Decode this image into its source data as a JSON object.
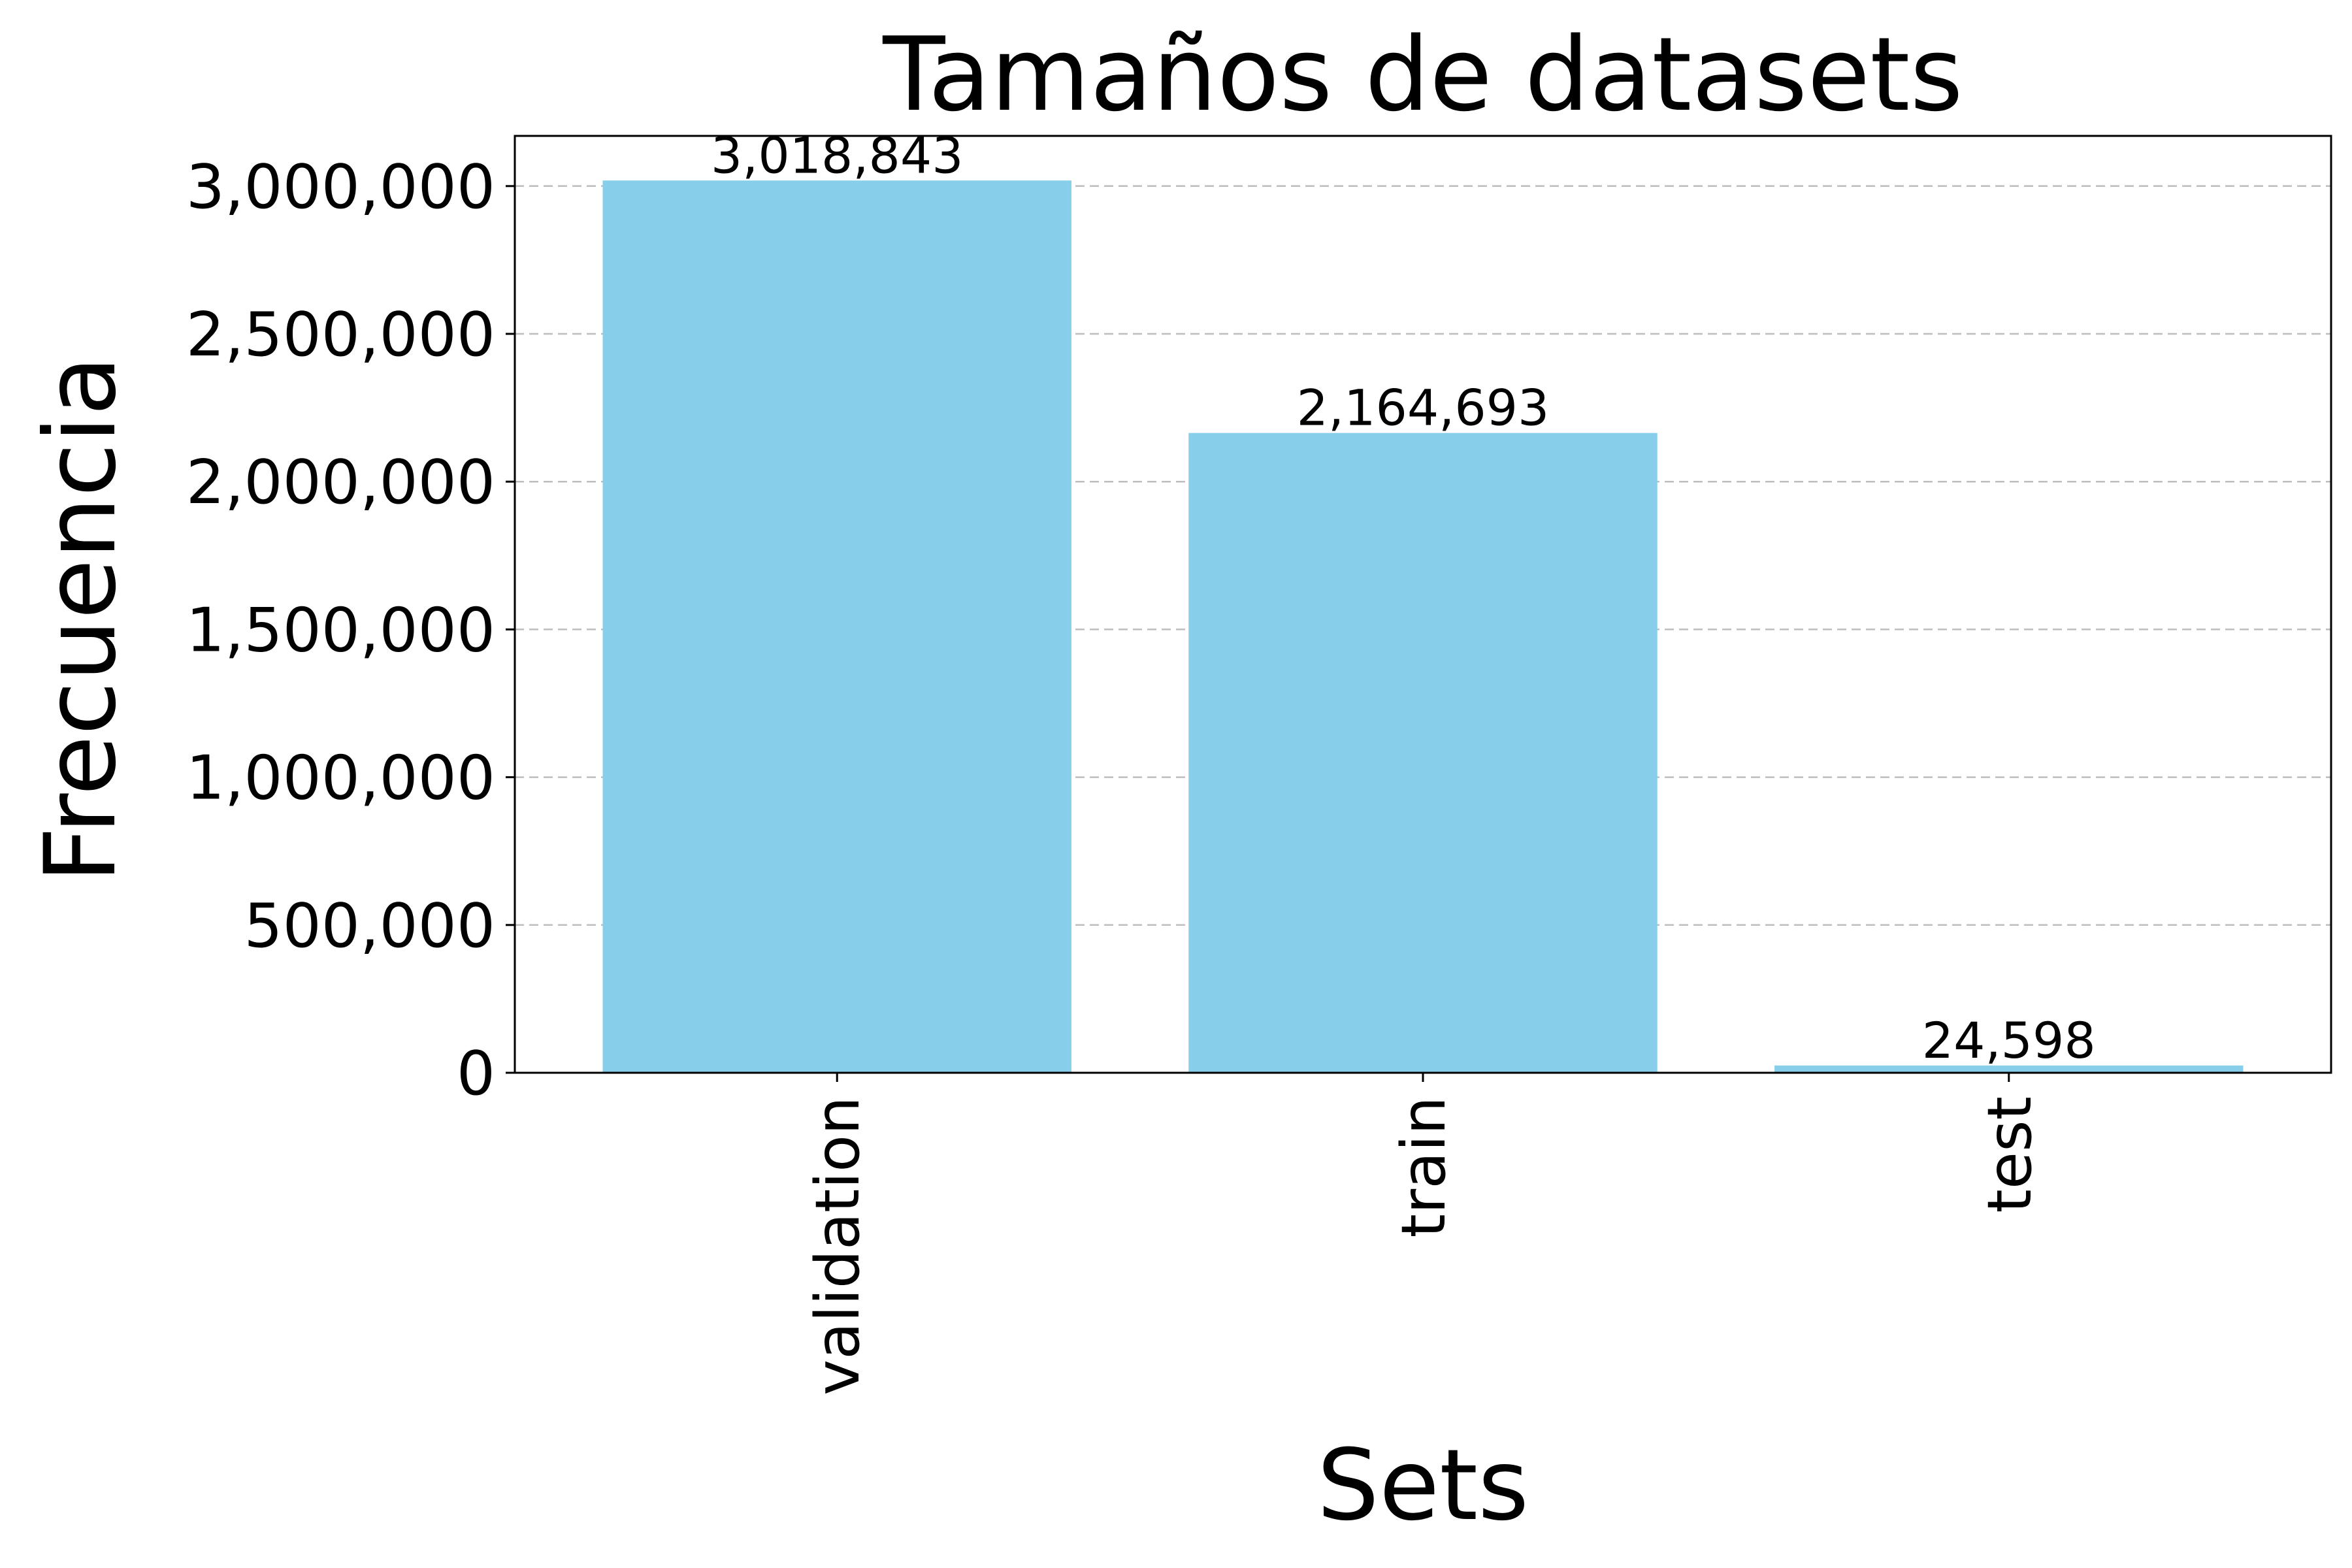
{
  "chart_data": {
    "type": "bar",
    "title": "Tamaños de datasets",
    "xlabel": "Sets",
    "ylabel": "Frecuencia",
    "categories": [
      "validation",
      "train",
      "test"
    ],
    "values": [
      3018843,
      2164693,
      24598
    ],
    "value_labels": [
      "3,018,843",
      "2,164,693",
      "24,598"
    ],
    "yticks": [
      0,
      500000,
      1000000,
      1500000,
      2000000,
      2500000,
      3000000
    ],
    "ytick_labels": [
      "0",
      "500,000",
      "1,000,000",
      "1,500,000",
      "2,000,000",
      "2,500,000",
      "3,000,000"
    ],
    "ylim": [
      0,
      3169785
    ],
    "bar_color": "#87CEEB",
    "grid": "y, dashed",
    "xtick_rotation": "vertical"
  }
}
